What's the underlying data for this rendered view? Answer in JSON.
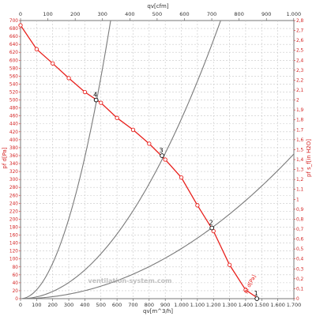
{
  "chart_data": {
    "type": "line",
    "title": "",
    "top_axis": {
      "label": "qv[cfm]",
      "range": [
        0,
        1000
      ],
      "ticks": [
        "0",
        "100",
        "200",
        "300",
        "400",
        "500",
        "600",
        "700",
        "800",
        "900",
        "1.000"
      ]
    },
    "bottom_axis": {
      "label": "qv[m^3/h]",
      "range": [
        0,
        1700
      ],
      "ticks": [
        "0",
        "100",
        "200",
        "300",
        "400",
        "500",
        "600",
        "700",
        "800",
        "900",
        "1.000",
        "1.100",
        "1.200",
        "1.300",
        "1.400",
        "1.500",
        "1.600",
        "1.700"
      ]
    },
    "left_axis": {
      "label": "pf d[Pa]",
      "range": [
        0,
        700
      ],
      "ticks": [
        "0",
        "20",
        "40",
        "60",
        "80",
        "100",
        "120",
        "140",
        "160",
        "180",
        "200",
        "220",
        "240",
        "260",
        "280",
        "300",
        "320",
        "340",
        "360",
        "380",
        "400",
        "420",
        "440",
        "460",
        "480",
        "500",
        "520",
        "540",
        "560",
        "580",
        "600",
        "620",
        "640",
        "660",
        "680",
        "700"
      ]
    },
    "right_axis": {
      "label": "pf s_f[in H2O]",
      "range": [
        0,
        2.8
      ],
      "ticks": [
        "0",
        "0,1",
        "0,2",
        "0,3",
        "0,4",
        "0,5",
        "0,6",
        "0,7",
        "0,8",
        "0,9",
        "1",
        "1,1",
        "1,2",
        "1,3",
        "1,4",
        "1,5",
        "1,6",
        "1,7",
        "1,8",
        "1,9",
        "2",
        "2,1",
        "2,2",
        "2,3",
        "2,4",
        "2,5",
        "2,6",
        "2,7",
        "2,8"
      ]
    },
    "grid": true,
    "series": [
      {
        "name": "pf d[Pa]",
        "color": "#e8201c",
        "marker": "circle",
        "x": [
          0,
          100,
          200,
          300,
          400,
          500,
          600,
          700,
          800,
          900,
          1000,
          1100,
          1200,
          1300,
          1400,
          1480
        ],
        "y": [
          688,
          628,
          592,
          555,
          520,
          493,
          455,
          425,
          390,
          350,
          305,
          235,
          170,
          85,
          22,
          0
        ]
      }
    ],
    "system_curves": [
      {
        "color": "#7a7a7a",
        "k": 0.00223
      },
      {
        "color": "#7a7a7a",
        "k": 0.000452
      },
      {
        "color": "#7a7a7a",
        "k": 0.000126
      }
    ],
    "operating_points": [
      {
        "label": "4",
        "x": 470,
        "y": 500
      },
      {
        "label": "3",
        "x": 880,
        "y": 360
      },
      {
        "label": "2",
        "x": 1190,
        "y": 178
      },
      {
        "label": "1",
        "x": 1470,
        "y": 0
      }
    ],
    "watermark": "ventilation-system.com"
  }
}
